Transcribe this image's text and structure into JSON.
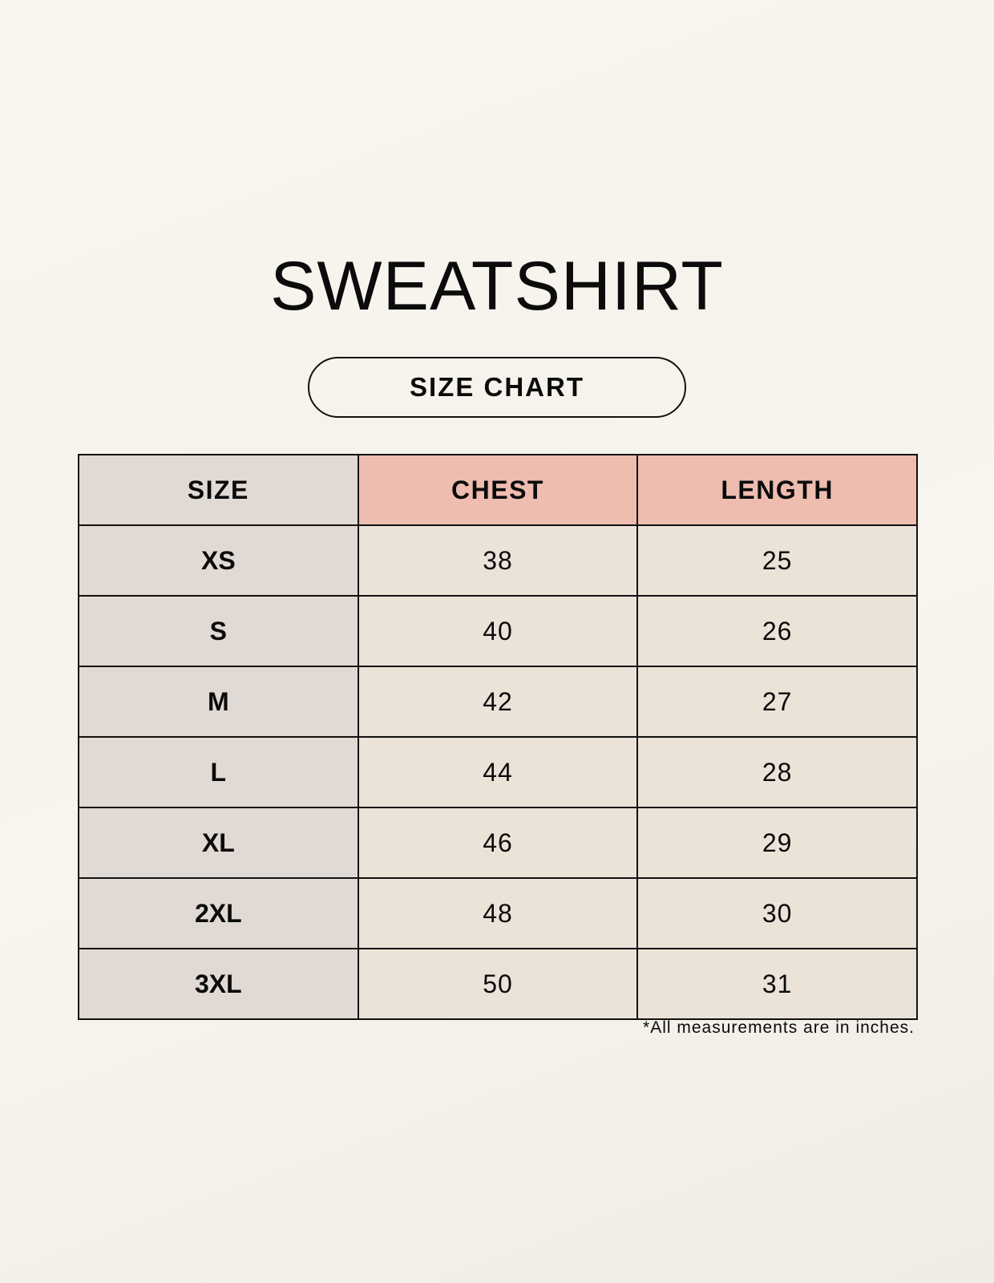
{
  "title": "SWEATSHIRT",
  "subtitle": "SIZE CHART",
  "colors": {
    "size_column": "#e1d9d3",
    "header_accent": "#eebdaf",
    "cell": "#ebe2d8"
  },
  "table": {
    "headers": [
      "SIZE",
      "CHEST",
      "LENGTH"
    ],
    "rows": [
      [
        "XS",
        "38",
        "25"
      ],
      [
        "S",
        "40",
        "26"
      ],
      [
        "M",
        "42",
        "27"
      ],
      [
        "L",
        "44",
        "28"
      ],
      [
        "XL",
        "46",
        "29"
      ],
      [
        "2XL",
        "48",
        "30"
      ],
      [
        "3XL",
        "50",
        "31"
      ]
    ]
  },
  "footnote": "*All measurements are in inches."
}
